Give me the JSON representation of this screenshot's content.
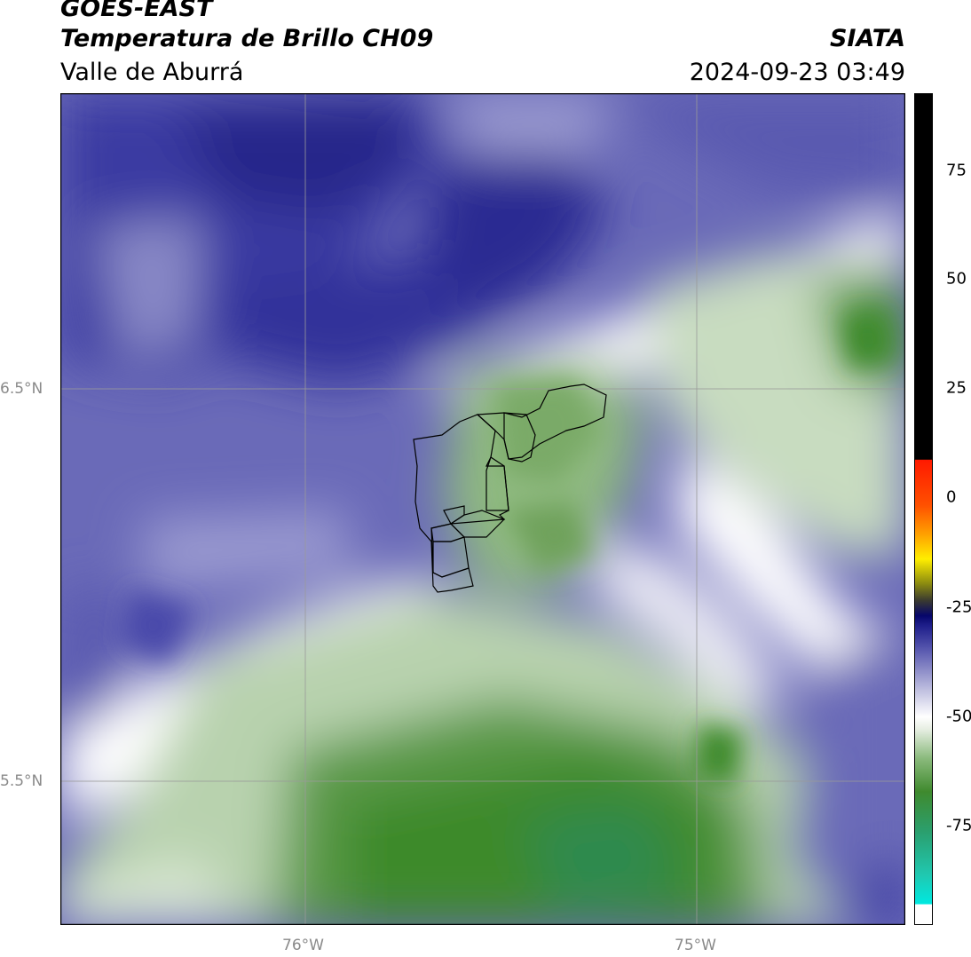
{
  "header": {
    "satellite": "GOES-EAST",
    "product": "Temperatura de Brillo CH09",
    "region": "Valle de Aburrá",
    "source": "SIATA",
    "datetime": "2024-09-23 03:49"
  },
  "map": {
    "lon_range": [
      -76.62,
      -74.53
    ],
    "lat_range": [
      5.13,
      7.25
    ],
    "lat_ticks": [
      {
        "value": 6.5,
        "label": "6.5°N"
      },
      {
        "value": 5.5,
        "label": "5.5°N"
      }
    ],
    "lon_ticks": [
      {
        "value": -76,
        "label": "76°W"
      },
      {
        "value": -75,
        "label": "75°W"
      }
    ],
    "grid": true
  },
  "colorbar": {
    "range": [
      -95,
      92
    ],
    "ticks": [
      {
        "value": 75,
        "label": "75"
      },
      {
        "value": 50,
        "label": "50"
      },
      {
        "value": 25,
        "label": "25"
      },
      {
        "value": 0,
        "label": "0"
      },
      {
        "value": -25,
        "label": "-25"
      },
      {
        "value": -50,
        "label": "-50"
      },
      {
        "value": -75,
        "label": "-75"
      }
    ],
    "colors": {
      "black": "#000000",
      "red": "#ff2000",
      "orange": "#ff8c00",
      "yellow": "#ffee00",
      "olive": "#5a5a10",
      "navy": "#0a0a7a",
      "blue": "#3d3d9a",
      "light_blue": "#b8b8dc",
      "white": "#ffffff",
      "light_green": "#cfe0c8",
      "green": "#3f8a2e",
      "teal": "#2aaa7a",
      "cyan": "#00e8e0"
    }
  }
}
